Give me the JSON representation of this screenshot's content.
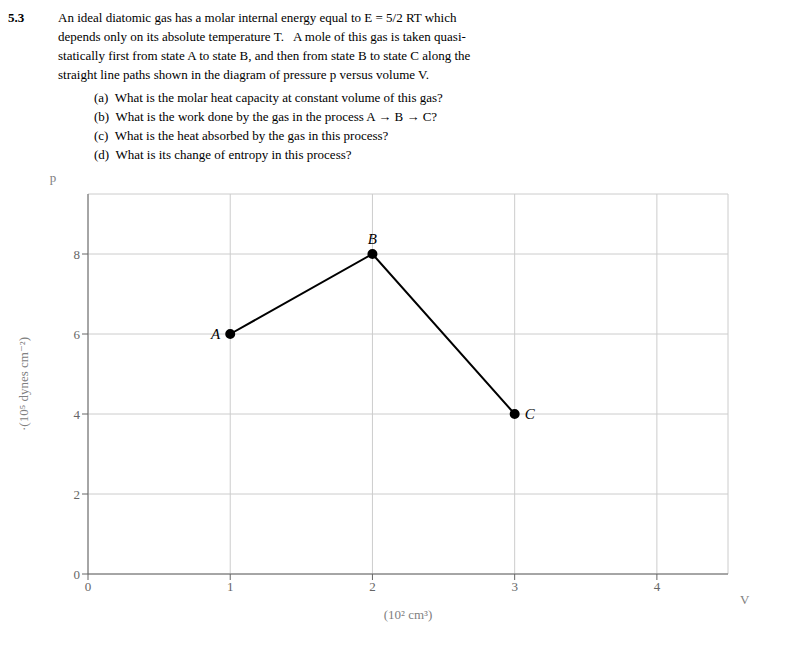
{
  "chart_data": {
    "type": "line",
    "title": "5.3",
    "subtitle": [
      "An ideal diatomic gas has a molar internal energy equal to E = 5/2 RT which",
      "depends only on its absolute temperature T.   A mole of this gas is taken quasi-",
      "statically first from state A to state B, and then from state B to state C along the",
      "straight line paths shown in the diagram of pressure p versus volume V.",
      "(a)  What is the molar heat capacity at constant volume of this gas?",
      "(b)  What is the work done by the gas in the process A → B → C?",
      "(c)  What is the heat absorbed by the gas in this process?",
      "(d)  What is its change of entropy in this process?"
    ],
    "x": [
      1.0,
      2.0,
      3.0
    ],
    "values": [
      6.0,
      8.0,
      4.0
    ],
    "color": "#000000",
    "marker": "circle",
    "line_style": "solid",
    "xlim": [
      0,
      4.5
    ],
    "ylim": [
      0,
      9.5
    ],
    "xticks": [
      0,
      1,
      2,
      3,
      4
    ],
    "yticks": [
      0,
      2,
      4,
      6,
      8
    ],
    "grid": true,
    "xlabel": "(10² cm³)",
    "ylabel": "·(10⁵ dynes cm⁻²)",
    "annotations": [
      {
        "text": "A",
        "x": 1.0,
        "y": 6.0
      },
      {
        "text": "B",
        "x": 2.0,
        "y": 8.0
      },
      {
        "text": "C",
        "x": 3.0,
        "y": 4.0
      },
      {
        "text": "p",
        "axis": "y"
      },
      {
        "text": "V",
        "axis": "x"
      }
    ]
  }
}
